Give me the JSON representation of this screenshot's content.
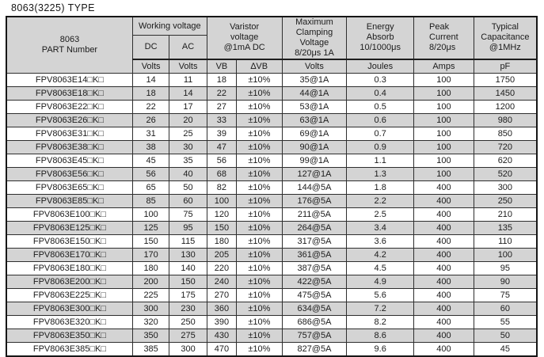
{
  "page_title": "8063(3225) TYPE",
  "colors": {
    "header_bg": "#d4d4d4",
    "stripe_bg": "#d4d4d4",
    "row_bg": "#ffffff",
    "border": "#2e2e2e",
    "text": "#1b1b1b"
  },
  "table": {
    "header": {
      "part_number": "8063\nPART Number",
      "working_voltage": "Working voltage",
      "dc": "DC",
      "ac": "AC",
      "varistor_voltage": "Varistor\nvoltage\n@1mA DC",
      "max_clamping_voltage": "Maximum\nClamping\nVoltage\n8/20μs 1A",
      "energy_absorb": "Energy\nAbsorb\n10/1000μs",
      "peak_current": "Peak\nCurrent\n8/20μs",
      "typical_capacitance": "Typical\nCapacitance\n@1MHz",
      "units": [
        "Volts",
        "Volts",
        "VB",
        "∆VB",
        "Volts",
        "Joules",
        "Amps",
        "pF"
      ]
    },
    "column_keys": [
      "part-number",
      "dc-volts",
      "ac-volts",
      "vb",
      "delta-vb",
      "clamping-volts",
      "energy-joules",
      "peak-amps",
      "capacitance-pf"
    ],
    "rows": [
      [
        "FPV8063E14□K□",
        14,
        11,
        18,
        "±10%",
        "35@1A",
        0.3,
        100,
        1750
      ],
      [
        "FPV8063E18□K□",
        18,
        14,
        22,
        "±10%",
        "44@1A",
        0.4,
        100,
        1450
      ],
      [
        "FPV8063E22□K□",
        22,
        17,
        27,
        "±10%",
        "53@1A",
        0.5,
        100,
        1200
      ],
      [
        "FPV8063E26□K□",
        26,
        20,
        33,
        "±10%",
        "63@1A",
        0.6,
        100,
        980
      ],
      [
        "FPV8063E31□K□",
        31,
        25,
        39,
        "±10%",
        "69@1A",
        0.7,
        100,
        850
      ],
      [
        "FPV8063E38□K□",
        38,
        30,
        47,
        "±10%",
        "90@1A",
        0.9,
        100,
        720
      ],
      [
        "FPV8063E45□K□",
        45,
        35,
        56,
        "±10%",
        "99@1A",
        1.1,
        100,
        620
      ],
      [
        "FPV8063E56□K□",
        56,
        40,
        68,
        "±10%",
        "127@1A",
        1.3,
        100,
        520
      ],
      [
        "FPV8063E65□K□",
        65,
        50,
        82,
        "±10%",
        "144@5A",
        1.8,
        400,
        300
      ],
      [
        "FPV8063E85□K□",
        85,
        60,
        100,
        "±10%",
        "176@5A",
        2.2,
        400,
        250
      ],
      [
        "FPV8063E100□K□",
        100,
        75,
        120,
        "±10%",
        "211@5A",
        2.5,
        400,
        210
      ],
      [
        "FPV8063E125□K□",
        125,
        95,
        150,
        "±10%",
        "264@5A",
        3.4,
        400,
        135
      ],
      [
        "FPV8063E150□K□",
        150,
        115,
        180,
        "±10%",
        "317@5A",
        3.6,
        400,
        110
      ],
      [
        "FPV8063E170□K□",
        170,
        130,
        205,
        "±10%",
        "361@5A",
        4.2,
        400,
        100
      ],
      [
        "FPV8063E180□K□",
        180,
        140,
        220,
        "±10%",
        "387@5A",
        4.5,
        400,
        95
      ],
      [
        "FPV8063E200□K□",
        200,
        150,
        240,
        "±10%",
        "422@5A",
        4.9,
        400,
        90
      ],
      [
        "FPV8063E225□K□",
        225,
        175,
        270,
        "±10%",
        "475@5A",
        5.6,
        400,
        75
      ],
      [
        "FPV8063E300□K□",
        300,
        230,
        360,
        "±10%",
        "634@5A",
        7.2,
        400,
        60
      ],
      [
        "FPV8063E320□K□",
        320,
        250,
        390,
        "±10%",
        "686@5A",
        8.2,
        400,
        55
      ],
      [
        "FPV8063E350□K□",
        350,
        275,
        430,
        "±10%",
        "757@5A",
        8.6,
        400,
        50
      ],
      [
        "FPV8063E385□K□",
        385,
        300,
        470,
        "±10%",
        "827@5A",
        9.6,
        400,
        45
      ]
    ]
  }
}
